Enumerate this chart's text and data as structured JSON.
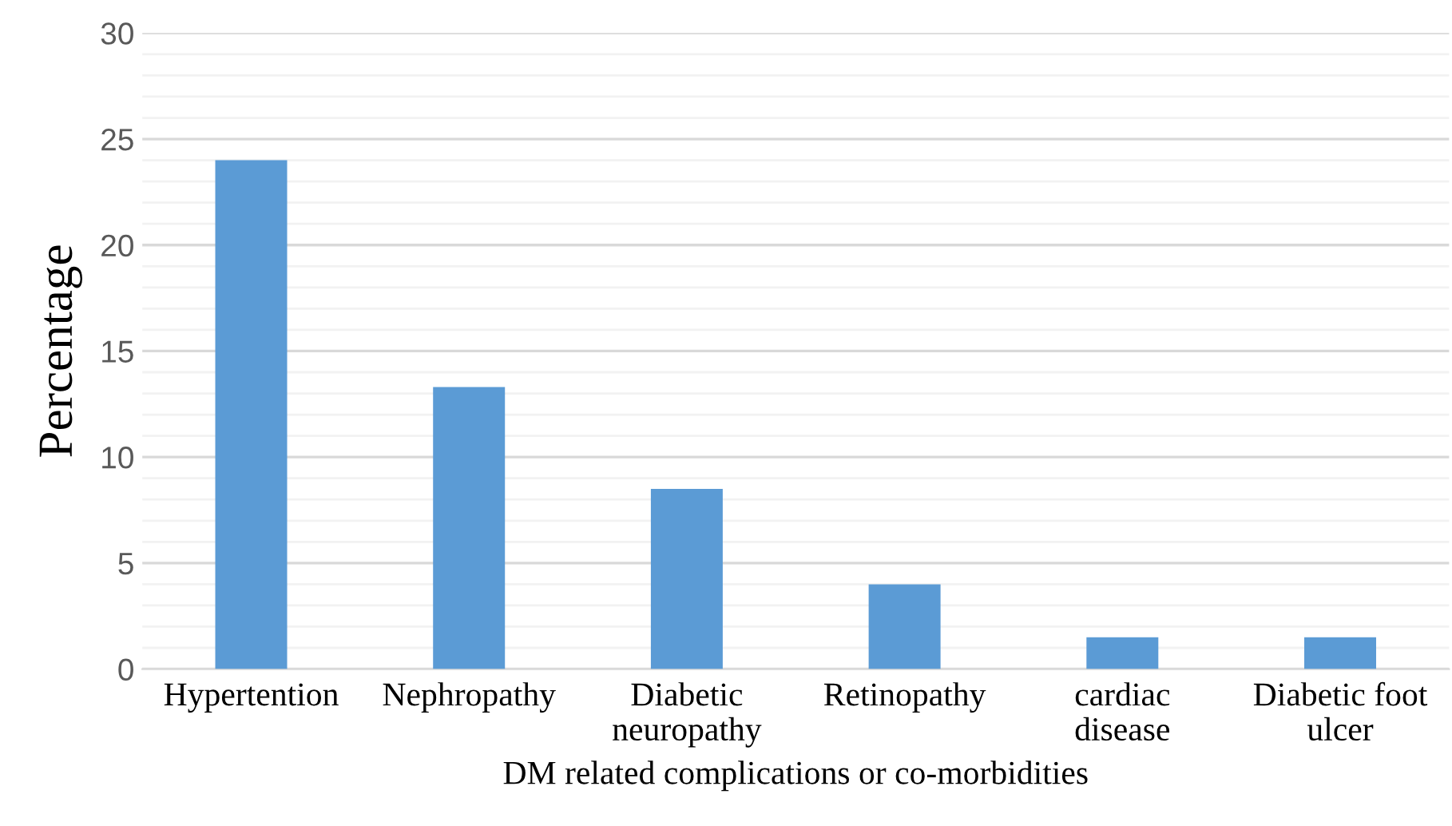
{
  "chart_data": {
    "type": "bar",
    "categories": [
      "Hypertention",
      "Nephropathy",
      "Diabetic\nneuropathy",
      "Retinopathy",
      "cardiac\ndisease",
      "Diabetic foot\nulcer"
    ],
    "values": [
      24,
      13.3,
      8.5,
      4,
      1.5,
      1.5
    ],
    "color": "#5b9bd5",
    "xlabel": "DM related complications or co-morbidities",
    "ylabel": "Percentage",
    "ylim": [
      0,
      30
    ],
    "yticks": [
      0,
      {
        "value": 1,
        "label": null
      },
      {
        "value": 2,
        "label": null
      },
      {
        "value": 3,
        "label": null
      },
      {
        "value": 4,
        "label": null
      },
      5,
      {
        "value": 6,
        "label": null
      },
      {
        "value": 7,
        "label": null
      },
      {
        "value": 8,
        "label": null
      },
      {
        "value": 9,
        "label": null
      },
      10,
      {
        "value": 11,
        "label": null
      },
      {
        "value": 12,
        "label": null
      },
      {
        "value": 13,
        "label": null
      },
      {
        "value": 14,
        "label": null
      },
      15,
      {
        "value": 16,
        "label": null
      },
      {
        "value": 17,
        "label": null
      },
      {
        "value": 18,
        "label": null
      },
      {
        "value": 19,
        "label": null
      },
      20,
      {
        "value": 21,
        "label": null
      },
      {
        "value": 22,
        "label": null
      },
      {
        "value": 23,
        "label": null
      },
      {
        "value": 24,
        "label": null
      },
      25,
      {
        "value": 26,
        "label": null
      },
      {
        "value": 27,
        "label": null
      },
      {
        "value": 28,
        "label": null
      },
      {
        "value": 29,
        "label": null
      },
      30
    ],
    "grid": "y"
  }
}
